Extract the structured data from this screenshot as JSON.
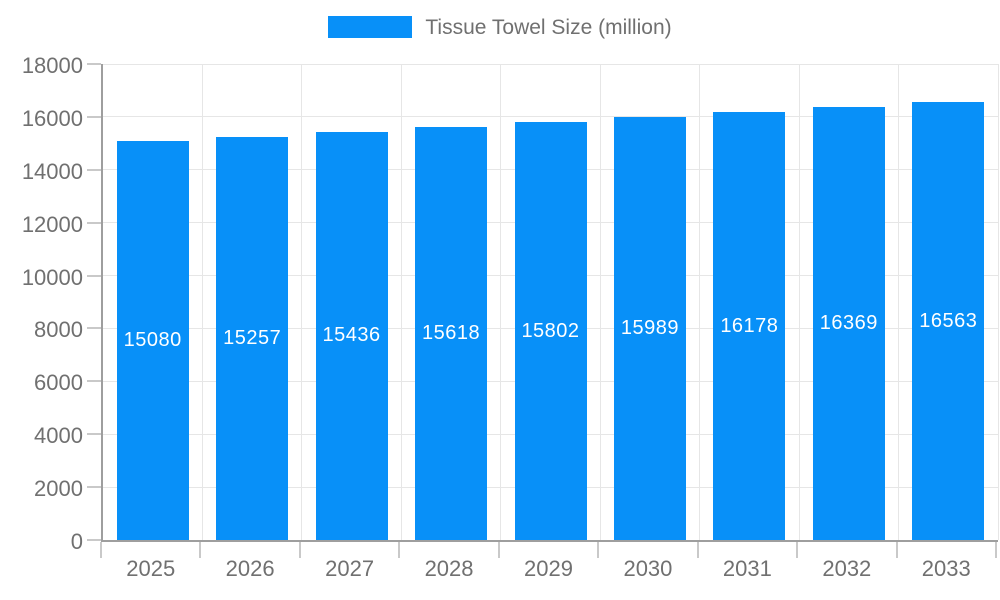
{
  "legend": {
    "label": "Tissue Towel Size (million)"
  },
  "colors": {
    "bar": "#0890F8",
    "grid": "#E6E6E6",
    "tick": "#C9C9C9",
    "axis": "#9E9E9E",
    "text": "#707070",
    "value_label": "#FFFFFF",
    "background": "#FFFFFF"
  },
  "chart_data": {
    "type": "bar",
    "title": "Tissue Towel Size (million)",
    "categories": [
      "2025",
      "2026",
      "2027",
      "2028",
      "2029",
      "2030",
      "2031",
      "2032",
      "2033"
    ],
    "values": [
      15080,
      15257,
      15436,
      15618,
      15802,
      15989,
      16178,
      16369,
      16563
    ],
    "series_name": "Tissue Towel Size (million)",
    "xlabel": "",
    "ylabel": "",
    "ylim": [
      0,
      18000
    ],
    "ytick_step": 2000,
    "ytick_labels": [
      "0",
      "2000",
      "4000",
      "6000",
      "8000",
      "10000",
      "12000",
      "14000",
      "16000",
      "18000"
    ],
    "grid": true,
    "legend_position": "top-center",
    "value_label_position": "inside-center",
    "value_label_color": "#FFFFFF"
  }
}
